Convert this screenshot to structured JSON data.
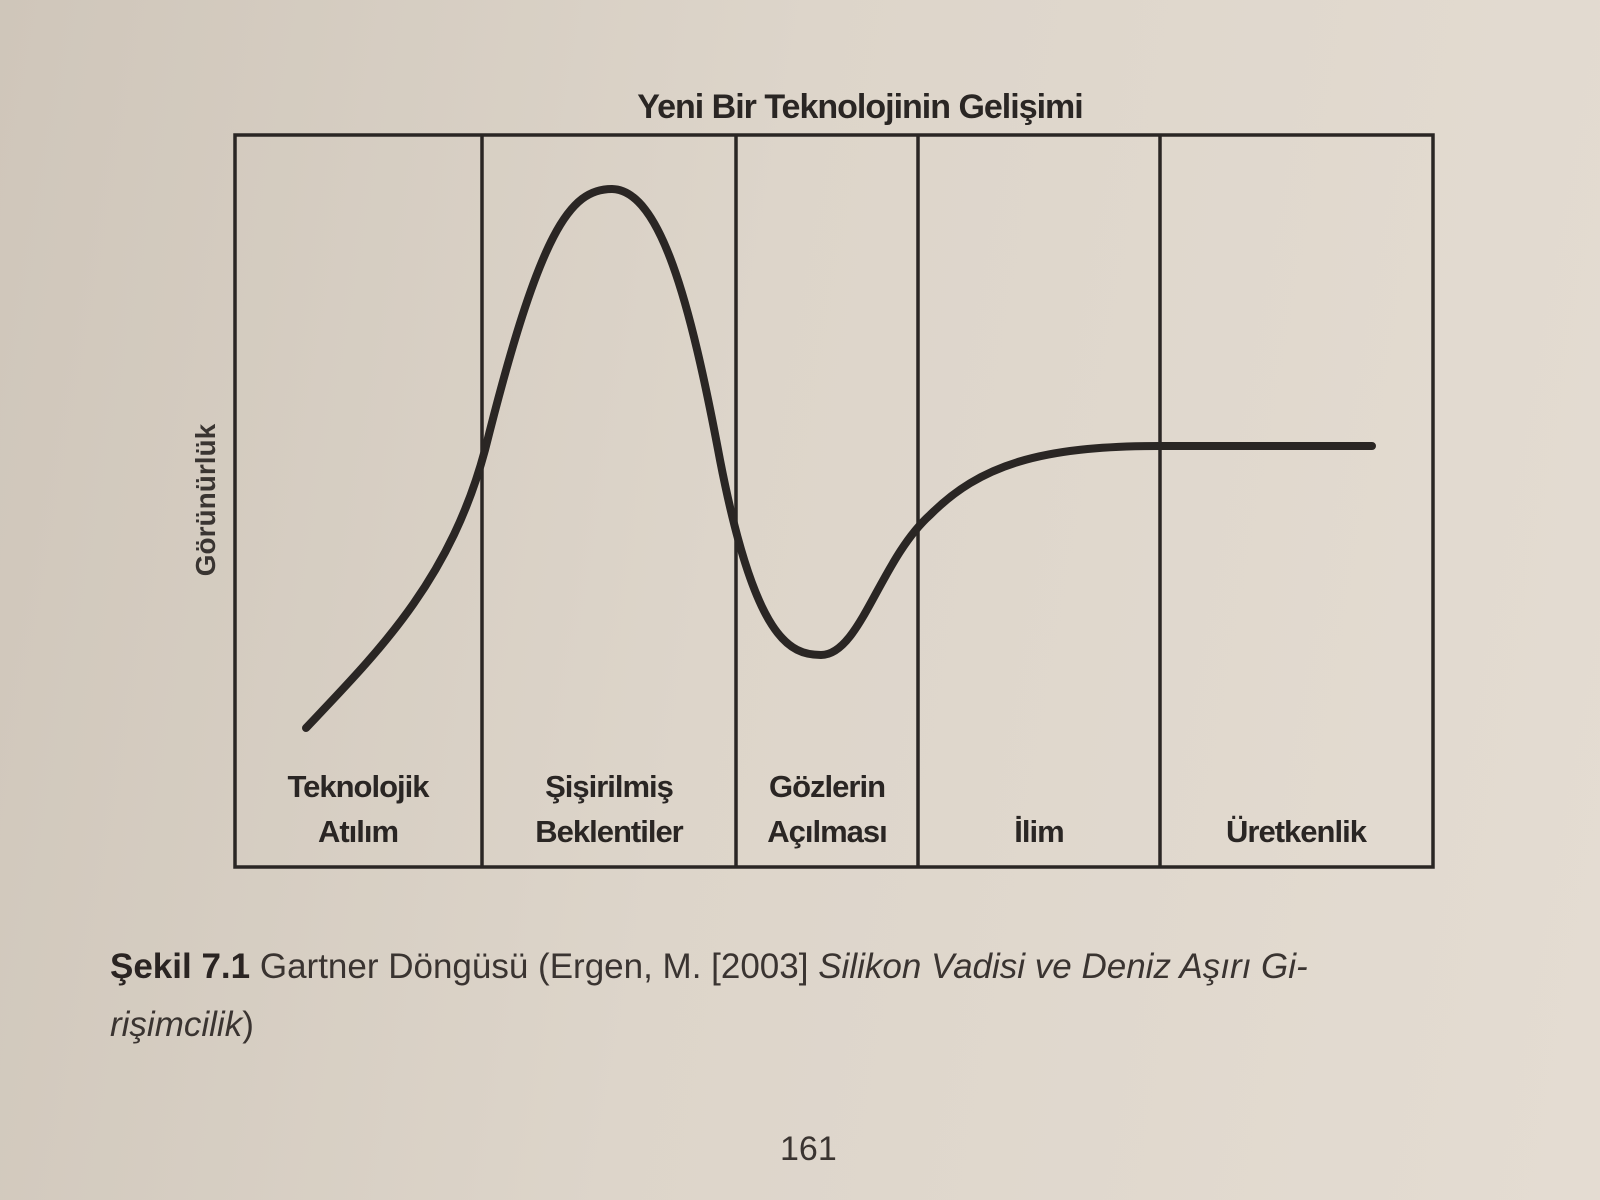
{
  "figure": {
    "title": "Yeni Bir Teknolojinin Gelişimi",
    "y_label": "Görünürlük",
    "phases": [
      {
        "lines": [
          "Teknolojik",
          "Atılım"
        ]
      },
      {
        "lines": [
          "Şişirilmiş",
          "Beklentiler"
        ]
      },
      {
        "lines": [
          "Gözlerin",
          "Açılması"
        ]
      },
      {
        "lines": [
          "İlim"
        ]
      },
      {
        "lines": [
          "Üretkenlik"
        ]
      }
    ]
  },
  "caption": {
    "label": "Şekil 7.1",
    "text": "Gartner Döngüsü (Ergen, M. [2003]",
    "source_line1": "Silikon Vadisi ve Deniz Aşırı Gi-",
    "source_line2": "rişimcilik",
    "end": ")"
  },
  "page_number": "161"
}
